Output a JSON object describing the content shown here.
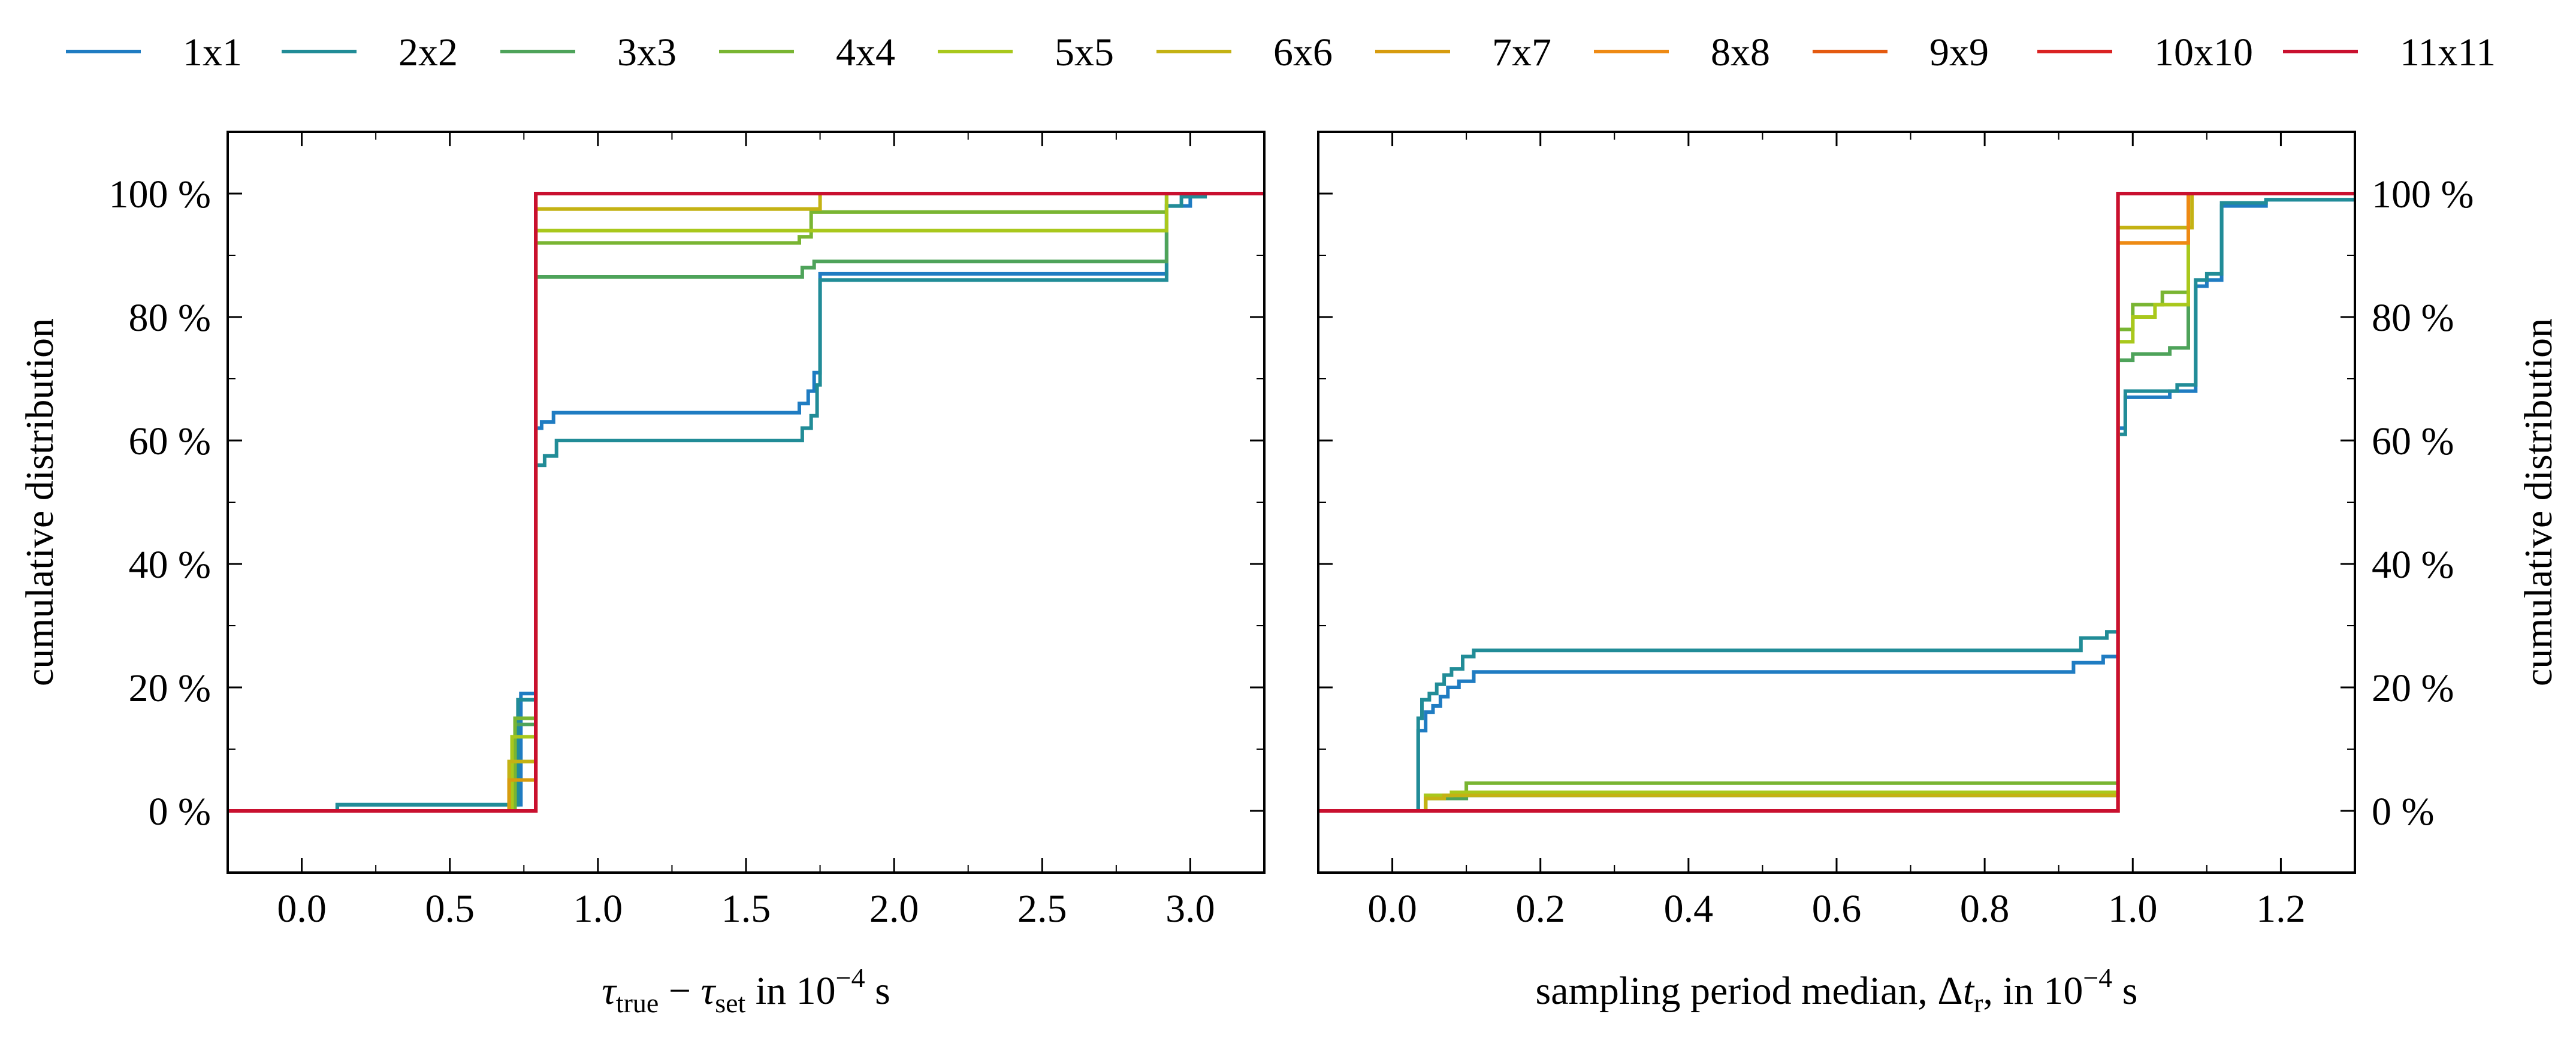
{
  "colors": {
    "1x1": "#1f7cc2",
    "2x2": "#218c97",
    "3x3": "#4ea35a",
    "4x4": "#79b532",
    "5x5": "#a9c81c",
    "6x6": "#c4b214",
    "7x7": "#d79c0f",
    "8x8": "#ee8a14",
    "9x9": "#e45a10",
    "10x10": "#da2222",
    "11x11": "#c9102f"
  },
  "legend": [
    "1x1",
    "2x2",
    "3x3",
    "4x4",
    "5x5",
    "6x6",
    "7x7",
    "8x8",
    "9x9",
    "10x10",
    "11x11"
  ],
  "chart_data": [
    {
      "type": "line",
      "step": true,
      "xlabel_parts": {
        "tau": "τ",
        "true_sub": "true",
        "minus": " − ",
        "set_sub": "set",
        "in_text": " in 10",
        "exp": "−4",
        "unit": " s"
      },
      "ylabel": "cumulative distribution",
      "xlim": [
        -0.25,
        3.25
      ],
      "ylim": [
        -10,
        110
      ],
      "xticks": [
        0.0,
        0.5,
        1.0,
        1.5,
        2.0,
        2.5,
        3.0
      ],
      "xtick_labels": [
        "0.0",
        "0.5",
        "1.0",
        "1.5",
        "2.0",
        "2.5",
        "3.0"
      ],
      "yticks": [
        0,
        20,
        40,
        60,
        80,
        100
      ],
      "ytick_labels": [
        "0 %",
        "20 %",
        "40 %",
        "60 %",
        "80 %",
        "100 %"
      ],
      "ylabel_side": "left",
      "series": [
        {
          "name": "1x1",
          "x": [
            -0.25,
            0.12,
            0.12,
            0.74,
            0.74,
            0.79,
            0.79,
            0.81,
            0.81,
            0.85,
            0.85,
            1.68,
            1.68,
            1.71,
            1.71,
            1.73,
            1.73,
            1.75,
            1.75,
            2.92,
            2.92,
            3.0,
            3.0,
            3.25
          ],
          "y": [
            0,
            0,
            1,
            1,
            19,
            19,
            62,
            62,
            63,
            63,
            64.5,
            64.5,
            66,
            66,
            68,
            68,
            71,
            71,
            87,
            87,
            98,
            98,
            100,
            100
          ]
        },
        {
          "name": "2x2",
          "x": [
            -0.25,
            0.12,
            0.12,
            0.73,
            0.73,
            0.79,
            0.79,
            0.82,
            0.82,
            0.86,
            0.86,
            1.69,
            1.69,
            1.72,
            1.72,
            1.74,
            1.74,
            1.75,
            1.75,
            2.92,
            2.92,
            2.97,
            2.97,
            3.05,
            3.05,
            3.25
          ],
          "y": [
            0,
            0,
            1,
            1,
            18,
            18,
            56,
            56,
            57.5,
            57.5,
            60,
            60,
            62,
            62,
            64,
            64,
            69,
            69,
            86,
            86,
            98,
            98,
            99.5,
            99.5,
            100,
            100
          ]
        },
        {
          "name": "3x3",
          "x": [
            -0.25,
            0.72,
            0.72,
            0.79,
            0.79,
            1.69,
            1.69,
            1.73,
            1.73,
            2.92,
            2.92,
            3.25
          ],
          "y": [
            0,
            0,
            14,
            14,
            86.5,
            86.5,
            88,
            88,
            89,
            89,
            100,
            100
          ]
        },
        {
          "name": "4x4",
          "x": [
            -0.25,
            0.72,
            0.72,
            0.79,
            0.79,
            1.68,
            1.68,
            1.72,
            1.72,
            2.92,
            2.92,
            3.25
          ],
          "y": [
            0,
            0,
            15,
            15,
            92,
            92,
            93,
            93,
            97,
            97,
            100,
            100
          ]
        },
        {
          "name": "5x5",
          "x": [
            -0.25,
            0.71,
            0.71,
            0.79,
            0.79,
            1.72,
            1.72,
            2.92,
            2.92,
            3.25
          ],
          "y": [
            0,
            0,
            12,
            12,
            94,
            94,
            94,
            94,
            100,
            100
          ]
        },
        {
          "name": "6x6",
          "x": [
            -0.25,
            0.7,
            0.7,
            0.79,
            0.79,
            1.75,
            1.75,
            3.25
          ],
          "y": [
            0,
            0,
            8,
            8,
            97.5,
            97.5,
            100,
            100
          ]
        },
        {
          "name": "7x7",
          "x": [
            -0.25,
            0.7,
            0.7,
            0.79,
            0.79,
            3.25
          ],
          "y": [
            0,
            0,
            5,
            5,
            100,
            100
          ]
        },
        {
          "name": "8x8",
          "x": [
            -0.25,
            0.79,
            0.79,
            3.25
          ],
          "y": [
            0,
            0,
            100,
            100
          ]
        },
        {
          "name": "9x9",
          "x": [
            -0.25,
            0.79,
            0.79,
            3.25
          ],
          "y": [
            0,
            0,
            100,
            100
          ]
        },
        {
          "name": "10x10",
          "x": [
            -0.25,
            0.79,
            0.79,
            3.25
          ],
          "y": [
            0,
            0,
            100,
            100
          ]
        },
        {
          "name": "11x11",
          "x": [
            -0.25,
            0.79,
            0.79,
            3.25
          ],
          "y": [
            0,
            0,
            100,
            100
          ]
        }
      ]
    },
    {
      "type": "line",
      "step": true,
      "xlabel_parts": {
        "prefix": "sampling period median, Δ",
        "t": "t",
        "tilde": "~",
        "sub": "r",
        "in_text": ", in 10",
        "exp": "−4",
        "unit": " s"
      },
      "ylabel": "cumulative distribution",
      "xlim": [
        -0.1,
        1.3
      ],
      "ylim": [
        -10,
        110
      ],
      "xticks": [
        0.0,
        0.2,
        0.4,
        0.6,
        0.8,
        1.0,
        1.2
      ],
      "xtick_labels": [
        "0.0",
        "0.2",
        "0.4",
        "0.6",
        "0.8",
        "1.0",
        "1.2"
      ],
      "yticks": [
        0,
        20,
        40,
        60,
        80,
        100
      ],
      "ytick_labels": [
        "0 %",
        "20 %",
        "40 %",
        "60 %",
        "80 %",
        "100 %"
      ],
      "ylabel_side": "right",
      "series": [
        {
          "name": "1x1",
          "x": [
            -0.1,
            0.035,
            0.035,
            0.045,
            0.045,
            0.055,
            0.055,
            0.065,
            0.065,
            0.075,
            0.075,
            0.09,
            0.09,
            0.11,
            0.11,
            0.92,
            0.92,
            0.96,
            0.96,
            0.98,
            0.98,
            0.99,
            0.99,
            1.05,
            1.05,
            1.085,
            1.085,
            1.1,
            1.1,
            1.12,
            1.12,
            1.18,
            1.18,
            1.3
          ],
          "y": [
            0,
            0,
            13,
            13,
            16,
            16,
            17,
            17,
            18.5,
            18.5,
            20,
            20,
            21,
            21,
            22.5,
            22.5,
            24,
            24,
            25,
            25,
            62,
            62,
            67,
            67,
            68,
            68,
            85,
            85,
            86,
            86,
            98,
            98,
            99,
            99
          ]
        },
        {
          "name": "2x2",
          "x": [
            -0.1,
            0.035,
            0.035,
            0.04,
            0.04,
            0.05,
            0.05,
            0.06,
            0.06,
            0.07,
            0.07,
            0.08,
            0.08,
            0.095,
            0.095,
            0.11,
            0.11,
            0.93,
            0.93,
            0.965,
            0.965,
            0.98,
            0.98,
            0.99,
            0.99,
            1.06,
            1.06,
            1.085,
            1.085,
            1.1,
            1.1,
            1.12,
            1.12,
            1.18,
            1.18,
            1.3
          ],
          "y": [
            0,
            0,
            15,
            15,
            18,
            18,
            19,
            19,
            20.5,
            20.5,
            22,
            22,
            23,
            23,
            25,
            25,
            26,
            26,
            28,
            28,
            29,
            29,
            61,
            61,
            68,
            68,
            69,
            69,
            86,
            86,
            87,
            87,
            98.5,
            98.5,
            99,
            99
          ]
        },
        {
          "name": "3x3",
          "x": [
            -0.1,
            0.045,
            0.045,
            0.1,
            0.1,
            0.98,
            0.98,
            1.0,
            1.0,
            1.05,
            1.05,
            1.075,
            1.075,
            1.3
          ],
          "y": [
            0,
            0,
            2,
            2,
            2.5,
            2.5,
            73,
            73,
            74,
            74,
            75,
            75,
            100,
            100
          ]
        },
        {
          "name": "4x4",
          "x": [
            -0.1,
            0.045,
            0.045,
            0.1,
            0.1,
            0.98,
            0.98,
            1.0,
            1.0,
            1.04,
            1.04,
            1.075,
            1.075,
            1.3
          ],
          "y": [
            0,
            0,
            2.5,
            2.5,
            4.5,
            4.5,
            78,
            78,
            82,
            82,
            84,
            84,
            100,
            100
          ]
        },
        {
          "name": "5x5",
          "x": [
            -0.1,
            0.045,
            0.045,
            0.08,
            0.08,
            0.98,
            0.98,
            1.0,
            1.0,
            1.03,
            1.03,
            1.075,
            1.075,
            1.3
          ],
          "y": [
            0,
            0,
            2.5,
            2.5,
            3,
            3,
            76,
            76,
            80,
            80,
            82,
            82,
            100,
            100
          ]
        },
        {
          "name": "6x6",
          "x": [
            -0.1,
            0.045,
            0.045,
            0.07,
            0.07,
            0.98,
            0.98,
            1.08,
            1.08,
            1.3
          ],
          "y": [
            0,
            0,
            2,
            2,
            2.5,
            2.5,
            94.5,
            94.5,
            100,
            100
          ]
        },
        {
          "name": "7x7",
          "x": [
            -0.1,
            0.98,
            0.98,
            1.075,
            1.075,
            1.3
          ],
          "y": [
            0,
            0,
            92,
            92,
            100,
            100
          ]
        },
        {
          "name": "8x8",
          "x": [
            -0.1,
            0.98,
            0.98,
            1.075,
            1.075,
            1.3
          ],
          "y": [
            0,
            0,
            92,
            92,
            100,
            100
          ]
        },
        {
          "name": "9x9",
          "x": [
            -0.1,
            0.98,
            0.98,
            1.3
          ],
          "y": [
            0,
            0,
            100,
            100
          ]
        },
        {
          "name": "10x10",
          "x": [
            -0.1,
            0.98,
            0.98,
            1.3
          ],
          "y": [
            0,
            0,
            100,
            100
          ]
        },
        {
          "name": "11x11",
          "x": [
            -0.1,
            0.98,
            0.98,
            1.3
          ],
          "y": [
            0,
            0,
            100,
            100
          ]
        }
      ]
    }
  ]
}
